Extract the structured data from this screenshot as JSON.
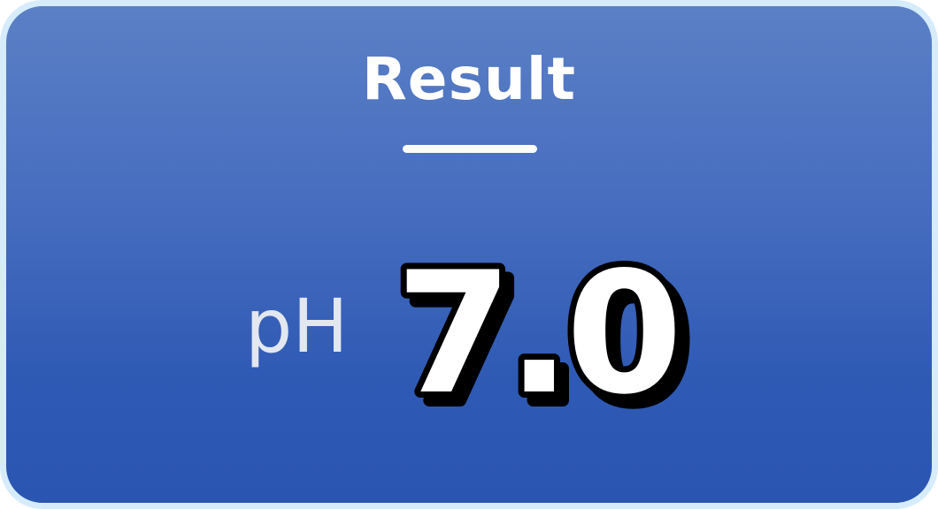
{
  "result": {
    "heading": "Result",
    "unit_label": "pH",
    "value": "7.0"
  },
  "colors": {
    "border": "#d6ecfb",
    "gradient_top": "#5b80c6",
    "gradient_bottom": "#2a55b1",
    "value_fill": "#ffffff",
    "value_outline": "#000000"
  }
}
